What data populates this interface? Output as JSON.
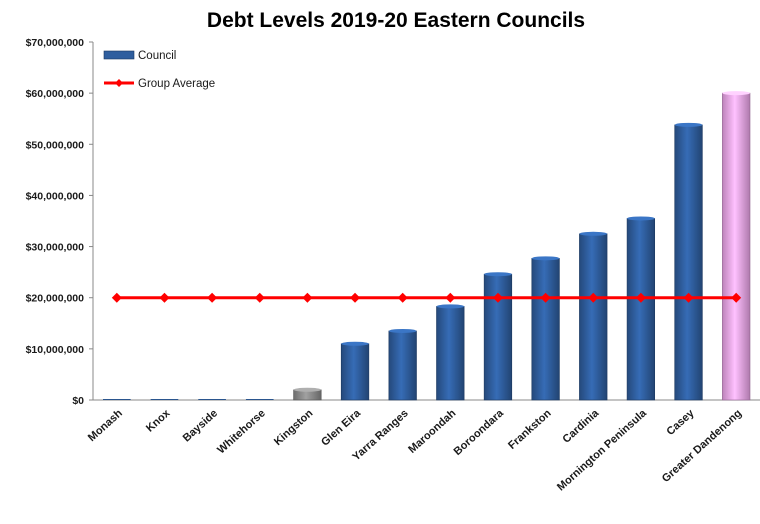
{
  "chart_data": {
    "type": "bar",
    "title": "Debt Levels 2019-20 Eastern Councils",
    "xlabel": "",
    "ylabel": "",
    "ylim": [
      0,
      70000000
    ],
    "yticks": [
      0,
      10000000,
      20000000,
      30000000,
      40000000,
      50000000,
      60000000,
      70000000
    ],
    "ytick_labels": [
      "$0",
      "$10,000,000",
      "$20,000,000",
      "$30,000,000",
      "$40,000,000",
      "$50,000,000",
      "$60,000,000",
      "$70,000,000"
    ],
    "categories": [
      "Monash",
      "Knox",
      "Bayside",
      "Whitehorse",
      "Kingston",
      "Glen Eira",
      "Yarra Ranges",
      "Maroondah",
      "Boroondara",
      "Frankston",
      "Cardinia",
      "Mornington Peninsula",
      "Casey",
      "Greater Dandenong"
    ],
    "series": [
      {
        "name": "Council",
        "kind": "bar",
        "values": [
          0,
          0,
          0,
          0,
          2000000,
          11000000,
          13500000,
          18300000,
          24600000,
          27700000,
          32500000,
          35500000,
          53800000,
          60000000
        ],
        "color": "#2f5e9e",
        "bar_colors": [
          "#2f5e9e",
          "#2f5e9e",
          "#2f5e9e",
          "#2f5e9e",
          "#8c8c8c",
          "#2f5e9e",
          "#2f5e9e",
          "#2f5e9e",
          "#2f5e9e",
          "#2f5e9e",
          "#2f5e9e",
          "#2f5e9e",
          "#2f5e9e",
          "#f2a8ef"
        ]
      },
      {
        "name": "Group Average",
        "kind": "line",
        "values": [
          20000000,
          20000000,
          20000000,
          20000000,
          20000000,
          20000000,
          20000000,
          20000000,
          20000000,
          20000000,
          20000000,
          20000000,
          20000000,
          20000000
        ],
        "color": "#ff0000"
      }
    ],
    "grid": false,
    "legend_position": "top-left"
  }
}
